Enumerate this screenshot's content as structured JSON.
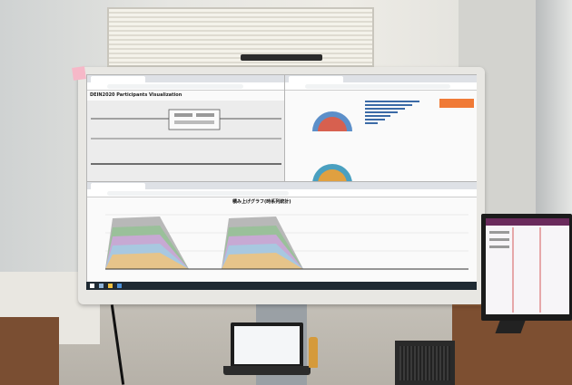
{
  "scene": {
    "kind": "photo",
    "colors": {
      "wall": "#e6e6e2",
      "floor": "#b6b1a8",
      "desk": "#7d4f31",
      "display_frame": "#e8e7e3",
      "taskbar": "#1f2a33"
    }
  },
  "display": {
    "left_window": {
      "title": "DEIN2020 Participants Visualization"
    },
    "bottom_window": {
      "caption": "積み上げグラフ(時系列統計)"
    }
  }
}
